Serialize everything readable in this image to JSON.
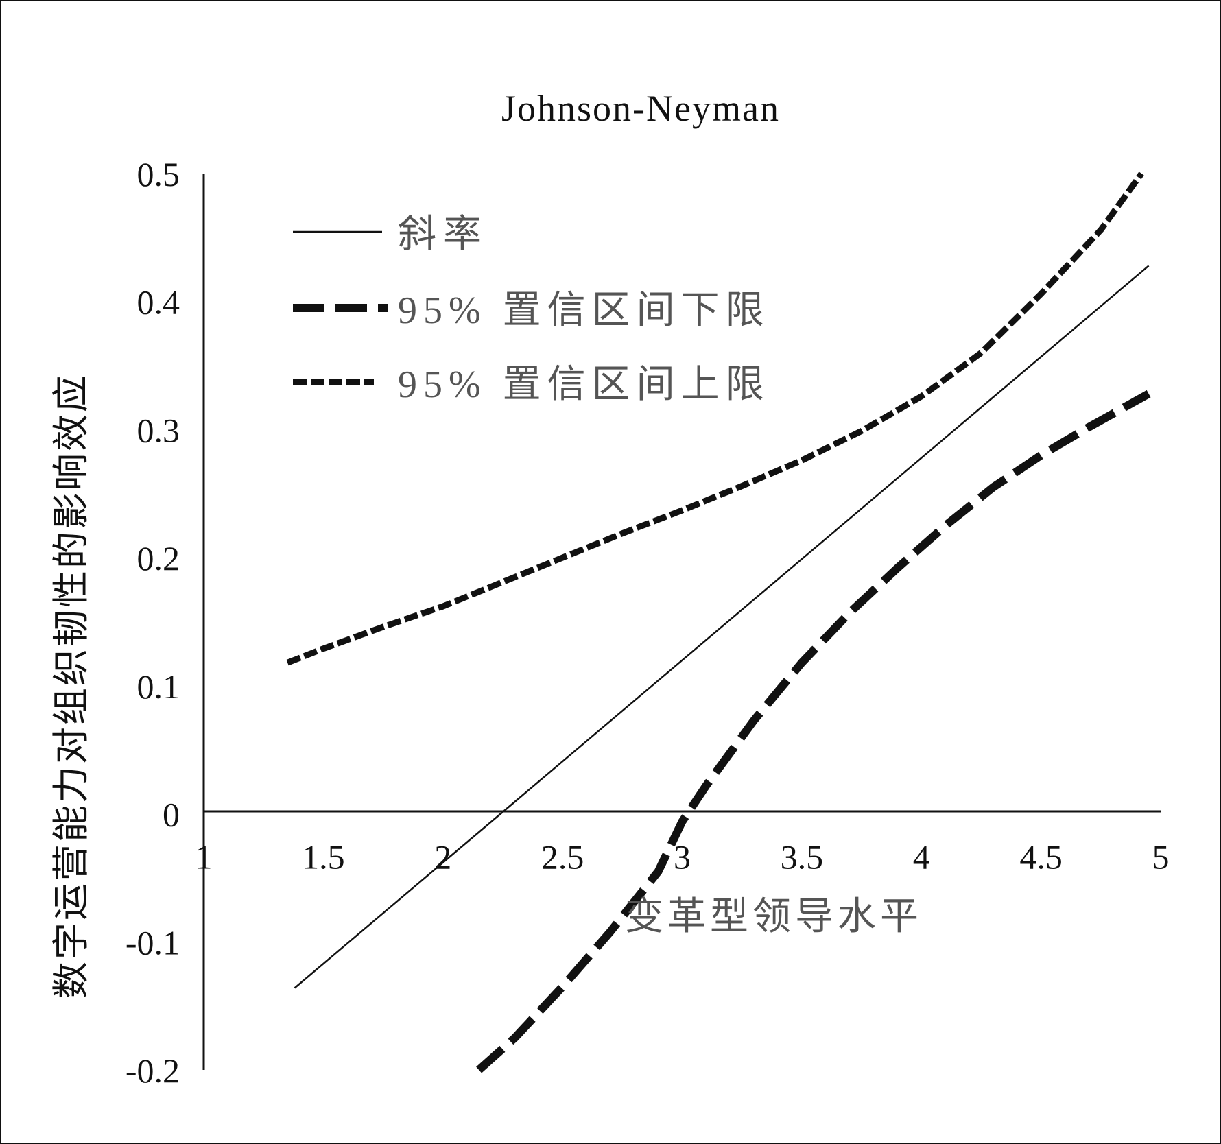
{
  "colors": {
    "ink": "#111111",
    "muted": "#555555",
    "background": "#ffffff"
  },
  "chart_data": {
    "type": "line",
    "title": "Johnson-Neyman",
    "xlabel": "变革型领导水平",
    "ylabel": "数字运营能力对组织韧性的影响效应",
    "xlim": [
      1,
      5
    ],
    "ylim": [
      -0.2,
      0.5
    ],
    "x_ticks": [
      "1",
      "1.5",
      "2",
      "2.5",
      "3",
      "3.5",
      "4",
      "4.5",
      "5"
    ],
    "y_ticks": [
      "-0.2",
      "-0.1",
      "0",
      "0.1",
      "0.2",
      "0.3",
      "0.4",
      "0.5"
    ],
    "grid": false,
    "legend_position": "top-left",
    "series": [
      {
        "name": "斜率",
        "style": "solid",
        "x": [
          1.38,
          4.95
        ],
        "y": [
          -0.136,
          0.428
        ]
      },
      {
        "name": "95% 置信区间下限",
        "style": "long-dash",
        "x": [
          2.15,
          2.3,
          2.5,
          2.7,
          2.9,
          3.0,
          3.1,
          3.3,
          3.5,
          3.7,
          3.9,
          4.1,
          4.3,
          4.5,
          4.7,
          4.95
        ],
        "y": [
          -0.2,
          -0.175,
          -0.135,
          -0.092,
          -0.045,
          -0.006,
          0.022,
          0.073,
          0.118,
          0.157,
          0.192,
          0.225,
          0.255,
          0.28,
          0.302,
          0.328
        ]
      },
      {
        "name": "95% 置信区间上限",
        "style": "short-dash",
        "x": [
          1.35,
          1.5,
          1.75,
          2.0,
          2.25,
          2.5,
          2.75,
          3.0,
          3.25,
          3.5,
          3.75,
          4.0,
          4.25,
          4.5,
          4.75,
          4.92
        ],
        "y": [
          0.118,
          0.129,
          0.146,
          0.162,
          0.181,
          0.2,
          0.219,
          0.237,
          0.256,
          0.276,
          0.299,
          0.326,
          0.36,
          0.406,
          0.456,
          0.5
        ]
      }
    ]
  }
}
